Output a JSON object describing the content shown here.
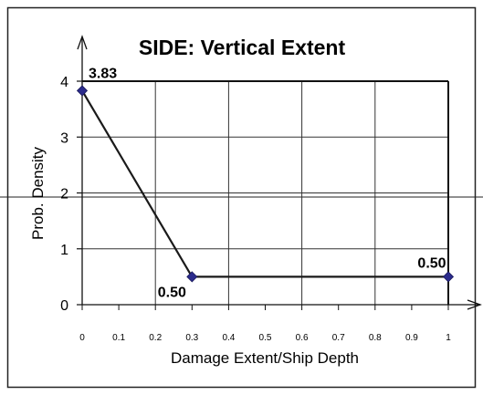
{
  "chart_data": {
    "type": "line",
    "title": "SIDE: Vertical Extent",
    "xlabel": "Damage Extent/Ship Depth",
    "ylabel": "Prob. Density",
    "xlim": [
      0,
      1
    ],
    "ylim": [
      0,
      4
    ],
    "x_ticks": [
      "0",
      "0.1",
      "0.2",
      "0.3",
      "0.4",
      "0.5",
      "0.6",
      "0.7",
      "0.8",
      "0.9",
      "1"
    ],
    "y_ticks": [
      "0",
      "1",
      "2",
      "3",
      "4"
    ],
    "grid": true,
    "series": [
      {
        "x": [
          0,
          0.3,
          1
        ],
        "y": [
          3.83,
          0.5,
          0.5
        ],
        "data_labels": [
          "3.83",
          "0.50",
          "0.50"
        ],
        "color": "#1a1a1a",
        "marker_color": "#2b2b8c"
      }
    ]
  }
}
